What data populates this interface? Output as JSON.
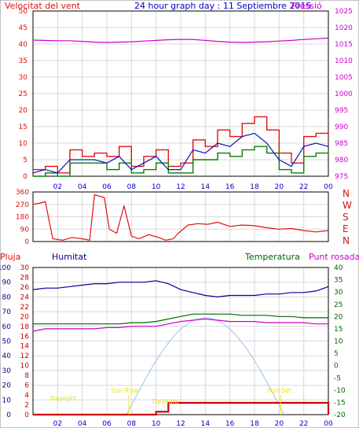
{
  "title": "24 hour graph day : 11 Septiembre 2015",
  "colors": {
    "wind": "#e01010",
    "gust": "#e01010",
    "avg": "#1010c0",
    "green": "#008000",
    "pressure": "#cc00cc",
    "humidity": "#000099",
    "temp": "#006600",
    "dew": "#cc00cc",
    "rain": "#cc0000",
    "solar": "#99c4ee",
    "annot": "#e8e800",
    "axis": "#0000cc"
  },
  "chart_data": [
    {
      "type": "line",
      "name": "wind-pressure",
      "left_axis_label": "Velocitat del vent",
      "right_axis_label": "Pressió",
      "x_ticks": [
        "02",
        "04",
        "06",
        "08",
        "10",
        "12",
        "14",
        "16",
        "18",
        "20",
        "22",
        "00"
      ],
      "ylim_left": [
        0,
        50
      ],
      "yticks_left": [
        "0",
        "5",
        "10",
        "15",
        "20",
        "25",
        "30",
        "35",
        "40",
        "45",
        "50"
      ],
      "ylim_right": [
        975,
        1025
      ],
      "yticks_right": [
        "975",
        "980",
        "985",
        "990",
        "995",
        "1000",
        "1005",
        "1010",
        "1015",
        "1020",
        "1025"
      ],
      "hours": [
        0,
        1,
        2,
        3,
        4,
        5,
        6,
        7,
        8,
        9,
        10,
        11,
        12,
        13,
        14,
        15,
        16,
        17,
        18,
        19,
        20,
        21,
        22,
        23,
        24
      ],
      "series": [
        {
          "key": "gust",
          "values": [
            2,
            3,
            1,
            8,
            6,
            7,
            6,
            9,
            3,
            6,
            8,
            3,
            4,
            11,
            9,
            14,
            12,
            16,
            18,
            14,
            7,
            4,
            12,
            13,
            12
          ]
        },
        {
          "key": "avg",
          "values": [
            1,
            2,
            1,
            5,
            5,
            5,
            4,
            6,
            2,
            4,
            6,
            2,
            2,
            8,
            7,
            10,
            9,
            12,
            13,
            10,
            5,
            3,
            9,
            10,
            9
          ]
        },
        {
          "key": "green",
          "values": [
            0,
            1,
            0,
            4,
            4,
            4,
            2,
            4,
            1,
            2,
            4,
            1,
            1,
            5,
            5,
            7,
            6,
            8,
            9,
            7,
            2,
            1,
            6,
            7,
            6
          ]
        },
        {
          "key": "pressure",
          "values": [
            1016.2,
            1016.1,
            1016.0,
            1016.0,
            1015.8,
            1015.6,
            1015.5,
            1015.6,
            1015.7,
            1015.9,
            1016.1,
            1016.3,
            1016.4,
            1016.4,
            1016.1,
            1015.8,
            1015.6,
            1015.5,
            1015.6,
            1015.7,
            1015.9,
            1016.1,
            1016.4,
            1016.6,
            1016.8
          ]
        }
      ]
    },
    {
      "type": "line",
      "name": "wind-direction",
      "x_ticks": [
        "02",
        "04",
        "06",
        "08",
        "10",
        "12",
        "14",
        "16",
        "18",
        "20",
        "22",
        "00"
      ],
      "ylim": [
        0,
        360
      ],
      "yticks": [
        "0",
        "90",
        "180",
        "270",
        "360"
      ],
      "right_labels": [
        "N",
        "W",
        "S",
        "E",
        "N"
      ],
      "hours": [
        0,
        0.6,
        1.0,
        1.6,
        2.4,
        3.2,
        4.0,
        4.6,
        5.0,
        5.4,
        5.8,
        6.2,
        6.8,
        7.4,
        8.0,
        8.6,
        9.4,
        10.2,
        10.8,
        11.4,
        11.8,
        12.6,
        13.4,
        14.2,
        15.0,
        16.0,
        17.0,
        18.0,
        19.0,
        20.0,
        21.0,
        22.0,
        23.0,
        24.0
      ],
      "values": [
        270,
        280,
        290,
        20,
        10,
        30,
        20,
        10,
        340,
        330,
        320,
        90,
        60,
        260,
        40,
        20,
        50,
        30,
        10,
        20,
        60,
        120,
        130,
        125,
        140,
        110,
        120,
        115,
        100,
        90,
        95,
        80,
        70,
        80
      ]
    },
    {
      "type": "line",
      "name": "humidity-temperature",
      "labels": {
        "rain": "Pluja",
        "humidity": "Humitat",
        "temp": "Temperatura",
        "dew": "Punt rosada"
      },
      "x_ticks": [
        "02",
        "04",
        "06",
        "08",
        "10",
        "12",
        "14",
        "16",
        "18",
        "20",
        "22",
        "00"
      ],
      "ylim_humidity": [
        0,
        100
      ],
      "yticks_humidity": [
        "0",
        "10",
        "20",
        "30",
        "40",
        "50",
        "60",
        "70",
        "80",
        "90",
        "100"
      ],
      "ylim_rain": [
        0,
        30
      ],
      "yticks_rain": [
        "0",
        "2",
        "4",
        "6",
        "8",
        "10",
        "12",
        "14",
        "16",
        "18",
        "20",
        "22",
        "24",
        "26",
        "28",
        "30"
      ],
      "ylim_temp": [
        -20,
        40
      ],
      "yticks_temp": [
        "-20",
        "-15",
        "-10",
        "-5",
        "0",
        "5",
        "10",
        "15",
        "20",
        "25",
        "30",
        "35",
        "40"
      ],
      "hours": [
        0,
        1,
        2,
        3,
        4,
        5,
        6,
        7,
        8,
        9,
        10,
        11,
        12,
        13,
        14,
        15,
        16,
        17,
        18,
        19,
        20,
        21,
        22,
        23,
        24
      ],
      "series": [
        {
          "key": "humidity",
          "axis": "humidity",
          "values": [
            85,
            86,
            86,
            87,
            88,
            89,
            89,
            90,
            90,
            90,
            91,
            89,
            85,
            83,
            81,
            80,
            81,
            81,
            81,
            82,
            82,
            83,
            83,
            84,
            87
          ]
        },
        {
          "key": "temp",
          "axis": "temp",
          "values": [
            17,
            17,
            17,
            17,
            17,
            17,
            17,
            17,
            17.5,
            17.5,
            18,
            19,
            20,
            21,
            21,
            21,
            21,
            20.5,
            20.5,
            20.5,
            20,
            20,
            19.5,
            19.5,
            19.5
          ]
        },
        {
          "key": "dew",
          "axis": "temp",
          "values": [
            14,
            15,
            15,
            15,
            15,
            15,
            15.5,
            15.5,
            16,
            16,
            16,
            17,
            18,
            18.5,
            19,
            18.5,
            18,
            18,
            18,
            17.5,
            17.5,
            17.5,
            17.5,
            17,
            17
          ]
        },
        {
          "key": "rain",
          "axis": "rain",
          "values": [
            0,
            0,
            0,
            0,
            0,
            0,
            0,
            0,
            0,
            0,
            0.6,
            2.4,
            2.4,
            2.4,
            2.4,
            2.4,
            2.4,
            2.4,
            2.4,
            2.4,
            2.4,
            2.4,
            2.4,
            2.4,
            0
          ]
        }
      ],
      "annotations": [
        "Daylight",
        "Sun Rise",
        "Daylight",
        "Sun Set"
      ]
    }
  ]
}
